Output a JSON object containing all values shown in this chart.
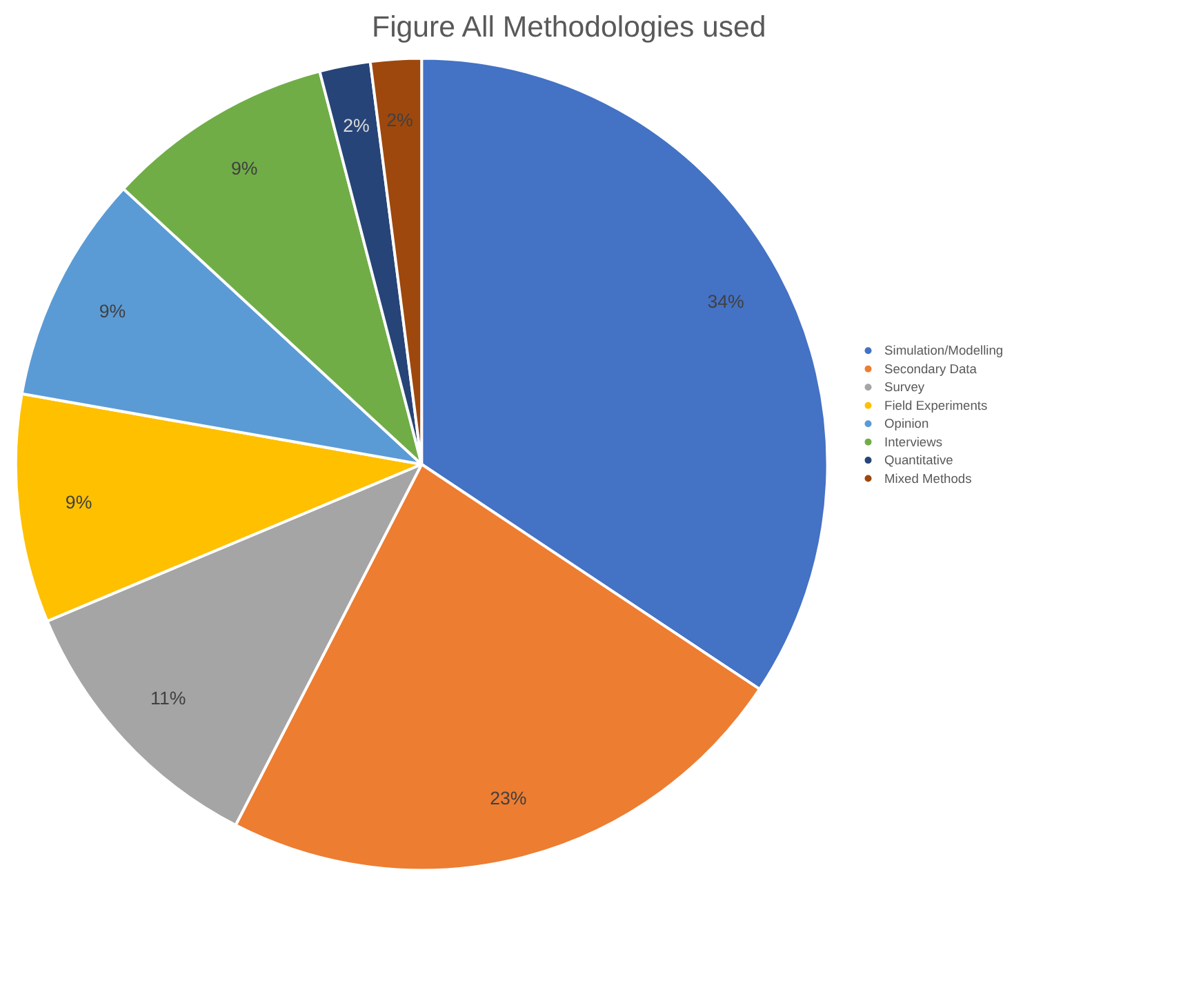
{
  "chart_data": {
    "type": "pie",
    "title": "Figure All Methodologies used",
    "categories": [
      "Simulation/Modelling",
      "Secondary Data",
      "Survey",
      "Field Experiments",
      "Opinion",
      "Interviews",
      "Quantitative",
      "Mixed Methods"
    ],
    "values": [
      34,
      23,
      11,
      9,
      9,
      9,
      2,
      2
    ],
    "colors": [
      "#4472c4",
      "#ed7d31",
      "#a5a5a5",
      "#ffc000",
      "#5b9bd5",
      "#70ad47",
      "#264478",
      "#9e480e"
    ],
    "value_labels": [
      "34%",
      "23%",
      "11%",
      "9%",
      "9%",
      "9%",
      "2%",
      "2%"
    ],
    "legend": "right"
  }
}
